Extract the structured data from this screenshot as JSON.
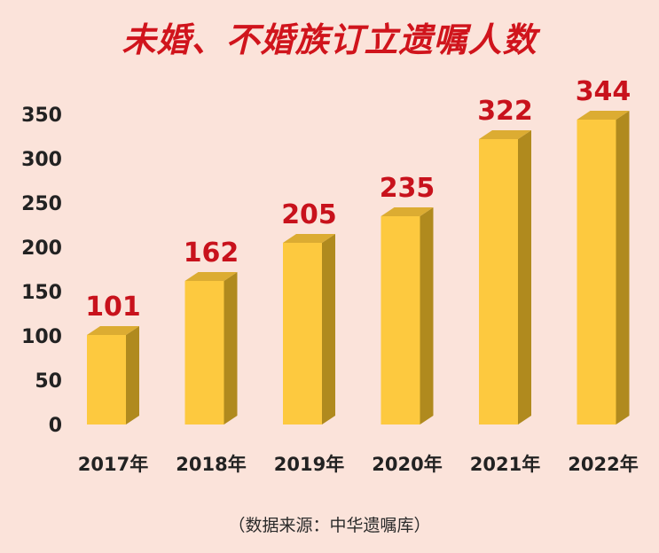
{
  "title": "未婚、不婚族订立遗嘱人数",
  "source": "（数据来源：中华遗嘱库）",
  "colors": {
    "background": "#fbe3da",
    "bar_front": "#fdc93f",
    "bar_top": "#dcac32",
    "bar_side": "#b08a1e",
    "label": "#c8121c",
    "title": "#d0141c"
  },
  "chart_data": {
    "type": "bar",
    "title": "未婚、不婚族订立遗嘱人数",
    "categories": [
      "2017年",
      "2018年",
      "2019年",
      "2020年",
      "2021年",
      "2022年"
    ],
    "values": [
      101,
      162,
      205,
      235,
      322,
      344
    ],
    "ylim": [
      0,
      350
    ],
    "yticks": [
      0,
      50,
      100,
      150,
      200,
      250,
      300,
      350
    ],
    "grid": false,
    "bar_style": "3d"
  }
}
